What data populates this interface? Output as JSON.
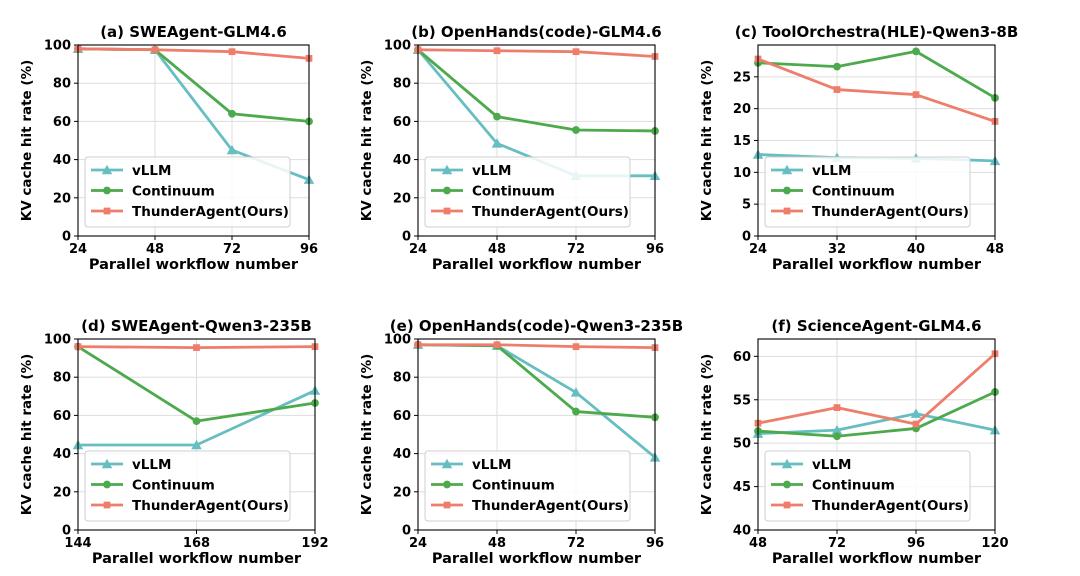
{
  "figure": {
    "colors": {
      "vllm": "#67bec0",
      "continuum": "#4caa4c",
      "thunder": "#ee7d6b"
    },
    "markers": {
      "vllm": "triangle",
      "continuum": "circle",
      "thunder": "square"
    }
  },
  "chart_data": [
    {
      "type": "line",
      "title": "(a) SWEAgent-GLM4.6",
      "xlabel": "Parallel workflow number",
      "ylabel": "KV cache hit rate (%)",
      "x": [
        24,
        48,
        72,
        96
      ],
      "xticks": [
        24,
        48,
        72,
        96
      ],
      "ylim": [
        0,
        100
      ],
      "yticks": [
        0,
        20,
        40,
        60,
        80,
        100
      ],
      "grid": true,
      "legend": "lower-left",
      "series": [
        {
          "key": "vllm",
          "name": "vLLM",
          "values": [
            98,
            97.5,
            45,
            29.5
          ]
        },
        {
          "key": "continuum",
          "name": "Continuum",
          "values": [
            98,
            97.5,
            64,
            60
          ]
        },
        {
          "key": "thunder",
          "name": "ThunderAgent(Ours)",
          "values": [
            98,
            97.5,
            96.5,
            93
          ]
        }
      ]
    },
    {
      "type": "line",
      "title": "(b) OpenHands(code)-GLM4.6",
      "xlabel": "Parallel workflow number",
      "ylabel": "KV cache hit rate (%)",
      "x": [
        24,
        48,
        72,
        96
      ],
      "xticks": [
        24,
        48,
        72,
        96
      ],
      "ylim": [
        0,
        100
      ],
      "yticks": [
        0,
        20,
        40,
        60,
        80,
        100
      ],
      "grid": true,
      "legend": "lower-left",
      "series": [
        {
          "key": "vllm",
          "name": "vLLM",
          "values": [
            97.5,
            48.5,
            31.5,
            31.5
          ]
        },
        {
          "key": "continuum",
          "name": "Continuum",
          "values": [
            97.5,
            62.5,
            55.5,
            55
          ]
        },
        {
          "key": "thunder",
          "name": "ThunderAgent(Ours)",
          "values": [
            97.5,
            97,
            96.5,
            94
          ]
        }
      ]
    },
    {
      "type": "line",
      "title": "(c) ToolOrchestra(HLE)-Qwen3-8B",
      "xlabel": "Parallel workflow number",
      "ylabel": "KV cache hit rate (%)",
      "x": [
        24,
        32,
        40,
        48
      ],
      "xticks": [
        24,
        32,
        40,
        48
      ],
      "ylim": [
        0,
        30
      ],
      "yticks": [
        0,
        5,
        10,
        15,
        20,
        25
      ],
      "grid": true,
      "legend": "lower-left",
      "series": [
        {
          "key": "vllm",
          "name": "vLLM",
          "values": [
            12.8,
            12.3,
            12.2,
            11.8
          ]
        },
        {
          "key": "continuum",
          "name": "Continuum",
          "values": [
            27.2,
            26.6,
            29,
            21.7
          ]
        },
        {
          "key": "thunder",
          "name": "ThunderAgent(Ours)",
          "values": [
            27.8,
            23,
            22.2,
            18
          ]
        }
      ]
    },
    {
      "type": "line",
      "title": "(d) SWEAgent-Qwen3-235B",
      "xlabel": "Parallel workflow number",
      "ylabel": "KV cache hit rate (%)",
      "x": [
        144,
        168,
        192
      ],
      "xticks": [
        144,
        168,
        192
      ],
      "ylim": [
        0,
        100
      ],
      "yticks": [
        0,
        20,
        40,
        60,
        80,
        100
      ],
      "grid": true,
      "legend": "lower-right",
      "series": [
        {
          "key": "vllm",
          "name": "vLLM",
          "values": [
            44.5,
            44.5,
            73
          ]
        },
        {
          "key": "continuum",
          "name": "Continuum",
          "values": [
            96,
            57,
            66.5
          ]
        },
        {
          "key": "thunder",
          "name": "ThunderAgent(Ours)",
          "values": [
            96,
            95.5,
            96
          ]
        }
      ]
    },
    {
      "type": "line",
      "title": "(e) OpenHands(code)-Qwen3-235B",
      "xlabel": "Parallel workflow number",
      "ylabel": "KV cache hit rate (%)",
      "x": [
        24,
        48,
        72,
        96
      ],
      "xticks": [
        24,
        48,
        72,
        96
      ],
      "ylim": [
        0,
        100
      ],
      "yticks": [
        0,
        20,
        40,
        60,
        80,
        100
      ],
      "grid": true,
      "legend": "lower-left",
      "series": [
        {
          "key": "vllm",
          "name": "vLLM",
          "values": [
            97,
            96.5,
            72,
            38
          ]
        },
        {
          "key": "continuum",
          "name": "Continuum",
          "values": [
            97,
            96.5,
            62,
            59
          ]
        },
        {
          "key": "thunder",
          "name": "ThunderAgent(Ours)",
          "values": [
            97,
            97,
            96,
            95.5
          ]
        }
      ]
    },
    {
      "type": "line",
      "title": "(f) ScienceAgent-GLM4.6",
      "xlabel": "Parallel workflow number",
      "ylabel": "KV cache hit rate (%)",
      "x": [
        48,
        72,
        96,
        120
      ],
      "xticks": [
        48,
        72,
        96,
        120
      ],
      "ylim": [
        40,
        62
      ],
      "yticks": [
        40,
        45,
        50,
        55,
        60
      ],
      "grid": true,
      "legend": "lower-left",
      "series": [
        {
          "key": "vllm",
          "name": "vLLM",
          "values": [
            51.1,
            51.5,
            53.4,
            51.5
          ]
        },
        {
          "key": "continuum",
          "name": "Continuum",
          "values": [
            51.4,
            50.8,
            51.7,
            55.9
          ]
        },
        {
          "key": "thunder",
          "name": "ThunderAgent(Ours)",
          "values": [
            52.3,
            54.1,
            52.2,
            60.3
          ]
        }
      ]
    }
  ]
}
